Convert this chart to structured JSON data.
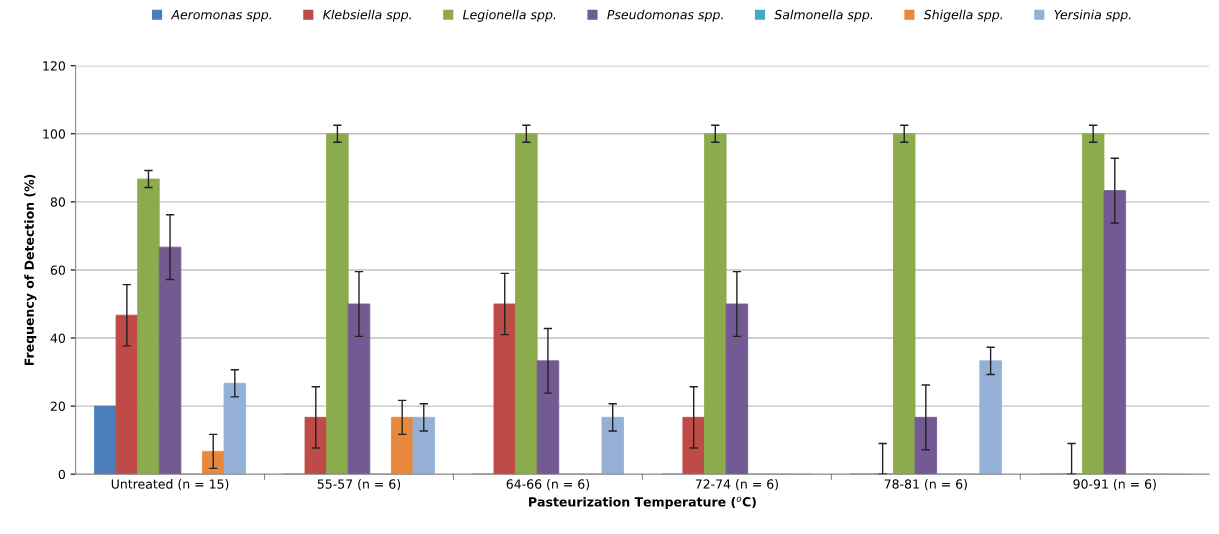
{
  "chart_data": {
    "type": "bar",
    "xlabel": "Pasteurization Temperature ($^{o}$C)",
    "ylabel": "Frequency of Detection (%)",
    "categories": [
      "Untreated (n = 15)",
      "55-57 (n = 6)",
      "64-66 (n = 6)",
      "72-74 (n = 6)",
      "78-81 (n = 6)",
      "90-91 (n = 6)"
    ],
    "series": [
      {
        "name": "Aeromonas spp.",
        "color": "#4a7ebb",
        "values": [
          20,
          0,
          0,
          0,
          0,
          0
        ],
        "errors": [
          null,
          null,
          null,
          null,
          null,
          null
        ]
      },
      {
        "name": "Klebsiella spp.",
        "color": "#be4b48",
        "values": [
          46.7,
          16.7,
          50,
          16.7,
          0,
          0
        ],
        "errors": [
          9,
          9,
          9,
          9,
          [
            0,
            9
          ],
          [
            0,
            9
          ]
        ]
      },
      {
        "name": "Legionella spp.",
        "color": "#8cab4c",
        "values": [
          86.7,
          100,
          100,
          100,
          100,
          100
        ],
        "errors": [
          2.5,
          2.5,
          2.5,
          2.5,
          2.5,
          2.5
        ]
      },
      {
        "name": "Pseudomonas spp.",
        "color": "#745a93",
        "values": [
          66.7,
          50,
          33.3,
          50,
          16.7,
          83.3
        ],
        "errors": [
          9.5,
          9.5,
          9.5,
          9.5,
          9.5,
          9.5
        ]
      },
      {
        "name": "Salmonella spp.",
        "color": "#46aac5",
        "values": [
          0,
          0,
          0,
          0,
          0,
          0
        ],
        "errors": [
          null,
          null,
          null,
          null,
          null,
          null
        ]
      },
      {
        "name": "Shigella spp.",
        "color": "#e8883c",
        "values": [
          6.7,
          16.7,
          0,
          0,
          0,
          0
        ],
        "errors": [
          5,
          5,
          null,
          null,
          null,
          null
        ]
      },
      {
        "name": "Yersinia spp.",
        "color": "#95b0d6",
        "values": [
          26.7,
          16.7,
          16.7,
          0,
          33.3,
          0
        ],
        "errors": [
          4,
          4,
          4,
          null,
          4,
          null
        ]
      }
    ],
    "ylim": [
      0,
      120
    ],
    "yticks": [
      0,
      20,
      40,
      60,
      80,
      100,
      120
    ],
    "grid": "y",
    "legend": "top"
  }
}
